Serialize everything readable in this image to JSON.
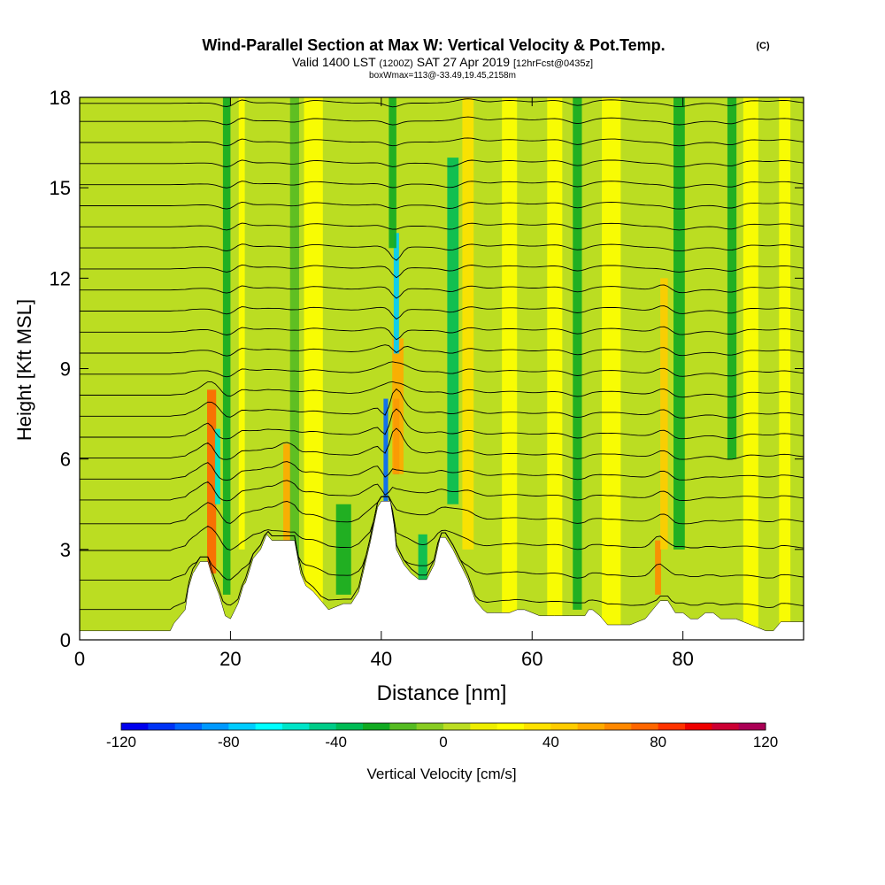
{
  "chart_data": {
    "type": "heatmap",
    "title": "Wind-Parallel Section at Max W: Vertical Velocity & Pot.Temp.",
    "copyright": "(C)",
    "subtitle_parts": [
      "Valid 1400 LST",
      "(1200Z)",
      "SAT 27 Apr 2019",
      "[12hrFcst@0435z]"
    ],
    "subtitle2": "boxWmax=113@-33.49,19.45,2158m",
    "xlabel": "Distance [nm]",
    "ylabel": "Height [Kft MSL]",
    "xlim": [
      0,
      96
    ],
    "ylim": [
      0,
      18
    ],
    "xticks": [
      0,
      20,
      40,
      60,
      80
    ],
    "yticks": [
      0,
      3,
      6,
      9,
      12,
      15,
      18
    ],
    "colorbar": {
      "label": "Vertical Velocity [cm/s]",
      "min": -120,
      "max": 120,
      "step": 10,
      "tick_labels": [
        -120,
        -80,
        -40,
        0,
        40,
        80,
        120
      ],
      "colors": [
        "#0000ee",
        "#0033f5",
        "#0066ff",
        "#0099ff",
        "#00ccff",
        "#00ffff",
        "#00e5c8",
        "#00cc88",
        "#00bb55",
        "#11aa22",
        "#55bb22",
        "#88cc22",
        "#bbdd22",
        "#eeee00",
        "#ffff00",
        "#ffe200",
        "#ffcc00",
        "#ffaa00",
        "#ff8800",
        "#ff6600",
        "#ff3300",
        "#ee0000",
        "#cc0033",
        "#aa0055"
      ]
    },
    "base_color": "#bbdd22",
    "plumes": [
      {
        "x": 17.5,
        "w": 1.2,
        "z0": 2.2,
        "z1": 8.3,
        "v": 75
      },
      {
        "x": 18.3,
        "w": 0.7,
        "z0": 4.5,
        "z1": 7.0,
        "v": -60
      },
      {
        "x": 19.5,
        "w": 1.0,
        "z0": 1.5,
        "z1": 18,
        "v": -25
      },
      {
        "x": 21.5,
        "w": 0.8,
        "z0": 3,
        "z1": 18,
        "v": 25
      },
      {
        "x": 27.5,
        "w": 1.0,
        "z0": 3.2,
        "z1": 6.5,
        "v": 55
      },
      {
        "x": 28.5,
        "w": 1.2,
        "z0": 2.5,
        "z1": 18,
        "v": -20
      },
      {
        "x": 31,
        "w": 2.5,
        "z0": 0,
        "z1": 18,
        "v": 20
      },
      {
        "x": 35,
        "w": 2.0,
        "z0": 1.5,
        "z1": 4.5,
        "v": -25
      },
      {
        "x": 40.6,
        "w": 0.6,
        "z0": 4.6,
        "z1": 8,
        "v": -100
      },
      {
        "x": 42.0,
        "w": 0.8,
        "z0": 5.5,
        "z1": 8.0,
        "v": 105
      },
      {
        "x": 42.2,
        "w": 1.5,
        "z0": 5.5,
        "z1": 10,
        "v": 55
      },
      {
        "x": 42.0,
        "w": 0.7,
        "z0": 9.5,
        "z1": 13.5,
        "v": -75
      },
      {
        "x": 41.5,
        "w": 1.0,
        "z0": 13,
        "z1": 18,
        "v": -30
      },
      {
        "x": 45.5,
        "w": 1.2,
        "z0": 2,
        "z1": 3.5,
        "v": -40
      },
      {
        "x": 49.5,
        "w": 1.5,
        "z0": 4.5,
        "z1": 16,
        "v": -35
      },
      {
        "x": 51.5,
        "w": 1.5,
        "z0": 3,
        "z1": 18,
        "v": 30
      },
      {
        "x": 57,
        "w": 2,
        "z0": 0,
        "z1": 18,
        "v": 20
      },
      {
        "x": 63,
        "w": 2,
        "z0": 0,
        "z1": 18,
        "v": 20
      },
      {
        "x": 66,
        "w": 1.2,
        "z0": 1,
        "z1": 18,
        "v": -25
      },
      {
        "x": 70.5,
        "w": 2.5,
        "z0": 0,
        "z1": 18,
        "v": 25
      },
      {
        "x": 76.7,
        "w": 0.8,
        "z0": 1.5,
        "z1": 3.3,
        "v": 60
      },
      {
        "x": 77.5,
        "w": 1.0,
        "z0": 3,
        "z1": 12,
        "v": 40
      },
      {
        "x": 79.5,
        "w": 1.5,
        "z0": 3,
        "z1": 18,
        "v": -25
      },
      {
        "x": 86.5,
        "w": 1.2,
        "z0": 6,
        "z1": 18,
        "v": -25
      },
      {
        "x": 89,
        "w": 2,
        "z0": 0,
        "z1": 18,
        "v": 20
      },
      {
        "x": 93.5,
        "w": 1.5,
        "z0": 0,
        "z1": 18,
        "v": 20
      }
    ],
    "terrain": [
      [
        0,
        0.3
      ],
      [
        12,
        0.3
      ],
      [
        12.5,
        0.55
      ],
      [
        13.5,
        0.85
      ],
      [
        14,
        1.0
      ],
      [
        14.4,
        1.7
      ],
      [
        15,
        2.2
      ],
      [
        16,
        2.6
      ],
      [
        17,
        2.6
      ],
      [
        17.7,
        2.0
      ],
      [
        18.5,
        1.5
      ],
      [
        19.3,
        0.8
      ],
      [
        20,
        0.7
      ],
      [
        21,
        1.2
      ],
      [
        21.7,
        1.8
      ],
      [
        22,
        1.9
      ],
      [
        23,
        2.7
      ],
      [
        24,
        3.0
      ],
      [
        24.8,
        3.5
      ],
      [
        25.5,
        3.3
      ],
      [
        27,
        3.3
      ],
      [
        28.5,
        3.3
      ],
      [
        29.3,
        2.2
      ],
      [
        30,
        1.8
      ],
      [
        31,
        1.6
      ],
      [
        32,
        1.3
      ],
      [
        33,
        1.0
      ],
      [
        34,
        1.1
      ],
      [
        35,
        1.2
      ],
      [
        36,
        1.2
      ],
      [
        37,
        1.6
      ],
      [
        38.5,
        3.2
      ],
      [
        39.5,
        4.4
      ],
      [
        40,
        4.6
      ],
      [
        41.2,
        4.6
      ],
      [
        41.7,
        3.8
      ],
      [
        42,
        3.0
      ],
      [
        43,
        2.5
      ],
      [
        44,
        2.2
      ],
      [
        45,
        2.0
      ],
      [
        46,
        2.0
      ],
      [
        47,
        2.5
      ],
      [
        47.8,
        3.4
      ],
      [
        48.5,
        3.4
      ],
      [
        49.5,
        3.0
      ],
      [
        50.5,
        2.5
      ],
      [
        51.5,
        2.0
      ],
      [
        52.5,
        1.3
      ],
      [
        53.5,
        1.0
      ],
      [
        54,
        0.9
      ],
      [
        55,
        0.9
      ],
      [
        57,
        0.9
      ],
      [
        58,
        1.0
      ],
      [
        59,
        1.0
      ],
      [
        61,
        0.8
      ],
      [
        63,
        0.8
      ],
      [
        65,
        0.8
      ],
      [
        67,
        0.8
      ],
      [
        67.5,
        1.0
      ],
      [
        68,
        1.0
      ],
      [
        69,
        0.8
      ],
      [
        70,
        0.5
      ],
      [
        73,
        0.5
      ],
      [
        75,
        0.7
      ],
      [
        76,
        1.0
      ],
      [
        77,
        1.3
      ],
      [
        78,
        1.3
      ],
      [
        79,
        0.9
      ],
      [
        80,
        0.9
      ],
      [
        81,
        0.7
      ],
      [
        82,
        0.7
      ],
      [
        83,
        0.9
      ],
      [
        84,
        0.9
      ],
      [
        85,
        0.7
      ],
      [
        87,
        0.7
      ],
      [
        89,
        0.5
      ],
      [
        91,
        0.3
      ],
      [
        92,
        0.3
      ],
      [
        93,
        0.6
      ],
      [
        96,
        0.6
      ]
    ],
    "isentropes": [
      {
        "z": 0.9
      },
      {
        "z": 1.9
      },
      {
        "z": 2.9
      },
      {
        "z": 3.8
      },
      {
        "z": 4.6
      },
      {
        "z": 5.3
      },
      {
        "z": 6.0
      },
      {
        "z": 6.7
      },
      {
        "z": 7.4
      },
      {
        "z": 8.1
      },
      {
        "z": 8.8
      },
      {
        "z": 9.5
      },
      {
        "z": 10.2
      },
      {
        "z": 10.9
      },
      {
        "z": 11.6
      },
      {
        "z": 12.3
      },
      {
        "z": 13.0
      },
      {
        "z": 13.7
      },
      {
        "z": 14.4
      },
      {
        "z": 15.1
      },
      {
        "z": 15.8
      },
      {
        "z": 16.5
      },
      {
        "z": 17.2
      },
      {
        "z": 17.8
      }
    ]
  }
}
